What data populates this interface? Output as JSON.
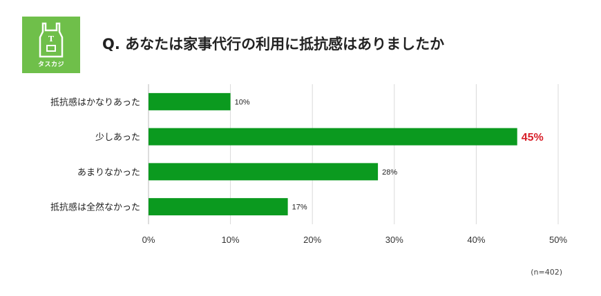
{
  "logo": {
    "text": "タスカジ"
  },
  "title": "Q. あなたは家事代行の利用に抵抗感はありましたか",
  "note": "(n=402)",
  "colors": {
    "bar": "#0b9a1f",
    "highlight": "#d8202a",
    "logo_bg": "#6fbf4a",
    "grid": "#d9d9d9"
  },
  "chart_data": {
    "type": "bar",
    "orientation": "horizontal",
    "categories": [
      "抵抗感はかなりあった",
      "少しあった",
      "あまりなかった",
      "抵抗感は全然なかった"
    ],
    "values": [
      10,
      45,
      28,
      17
    ],
    "value_labels": [
      "10%",
      "45%",
      "28%",
      "17%"
    ],
    "highlight_index": 1,
    "xlim": [
      0,
      50
    ],
    "xticks": [
      0,
      10,
      20,
      30,
      40,
      50
    ],
    "xtick_labels": [
      "0%",
      "10%",
      "20%",
      "30%",
      "40%",
      "50%"
    ],
    "grid": true
  }
}
